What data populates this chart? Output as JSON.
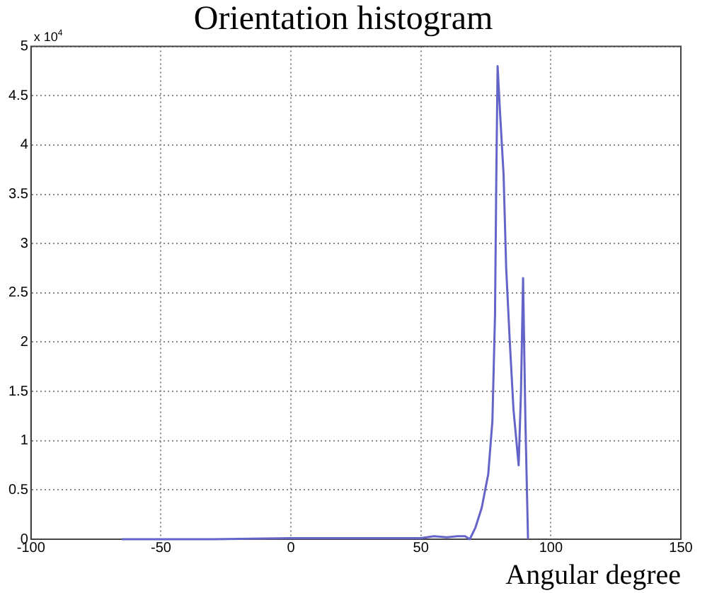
{
  "chart_data": {
    "type": "line",
    "title": "Orientation histogram",
    "xlabel": "Angular degree",
    "annotations": [
      "x 10$^{4}$"
    ],
    "series": [
      {
        "color": "#6464c8",
        "x": [
          -65,
          -30,
          0,
          30,
          50,
          55,
          60,
          64,
          67,
          68.8,
          71,
          73.4,
          75.9,
          77.5,
          78.5,
          79,
          79.5,
          80.5,
          81.8,
          82.8,
          84.2,
          85.6,
          87.6,
          88.5,
          89.3,
          90.2,
          91.2
        ],
        "values": [
          0,
          0,
          0.01,
          0.01,
          0.01,
          0.03,
          0.02,
          0.03,
          0.03,
          0,
          0.12,
          0.32,
          0.66,
          1.2,
          2.27,
          3.66,
          4.8,
          4.3,
          3.7,
          2.75,
          2.0,
          1.32,
          0.75,
          1.5,
          2.65,
          1.2,
          0
        ]
      }
    ],
    "xlim": [
      -100,
      150
    ],
    "xticks": [
      -100,
      -50,
      0,
      50,
      100,
      150
    ],
    "ylim": [
      0,
      5
    ],
    "yticks": [
      0,
      0.5,
      1,
      1.5,
      2,
      2.5,
      3,
      3.5,
      4,
      4.5,
      5
    ],
    "grid": true,
    "marker": "none",
    "line_style": "solid",
    "legend": false
  }
}
